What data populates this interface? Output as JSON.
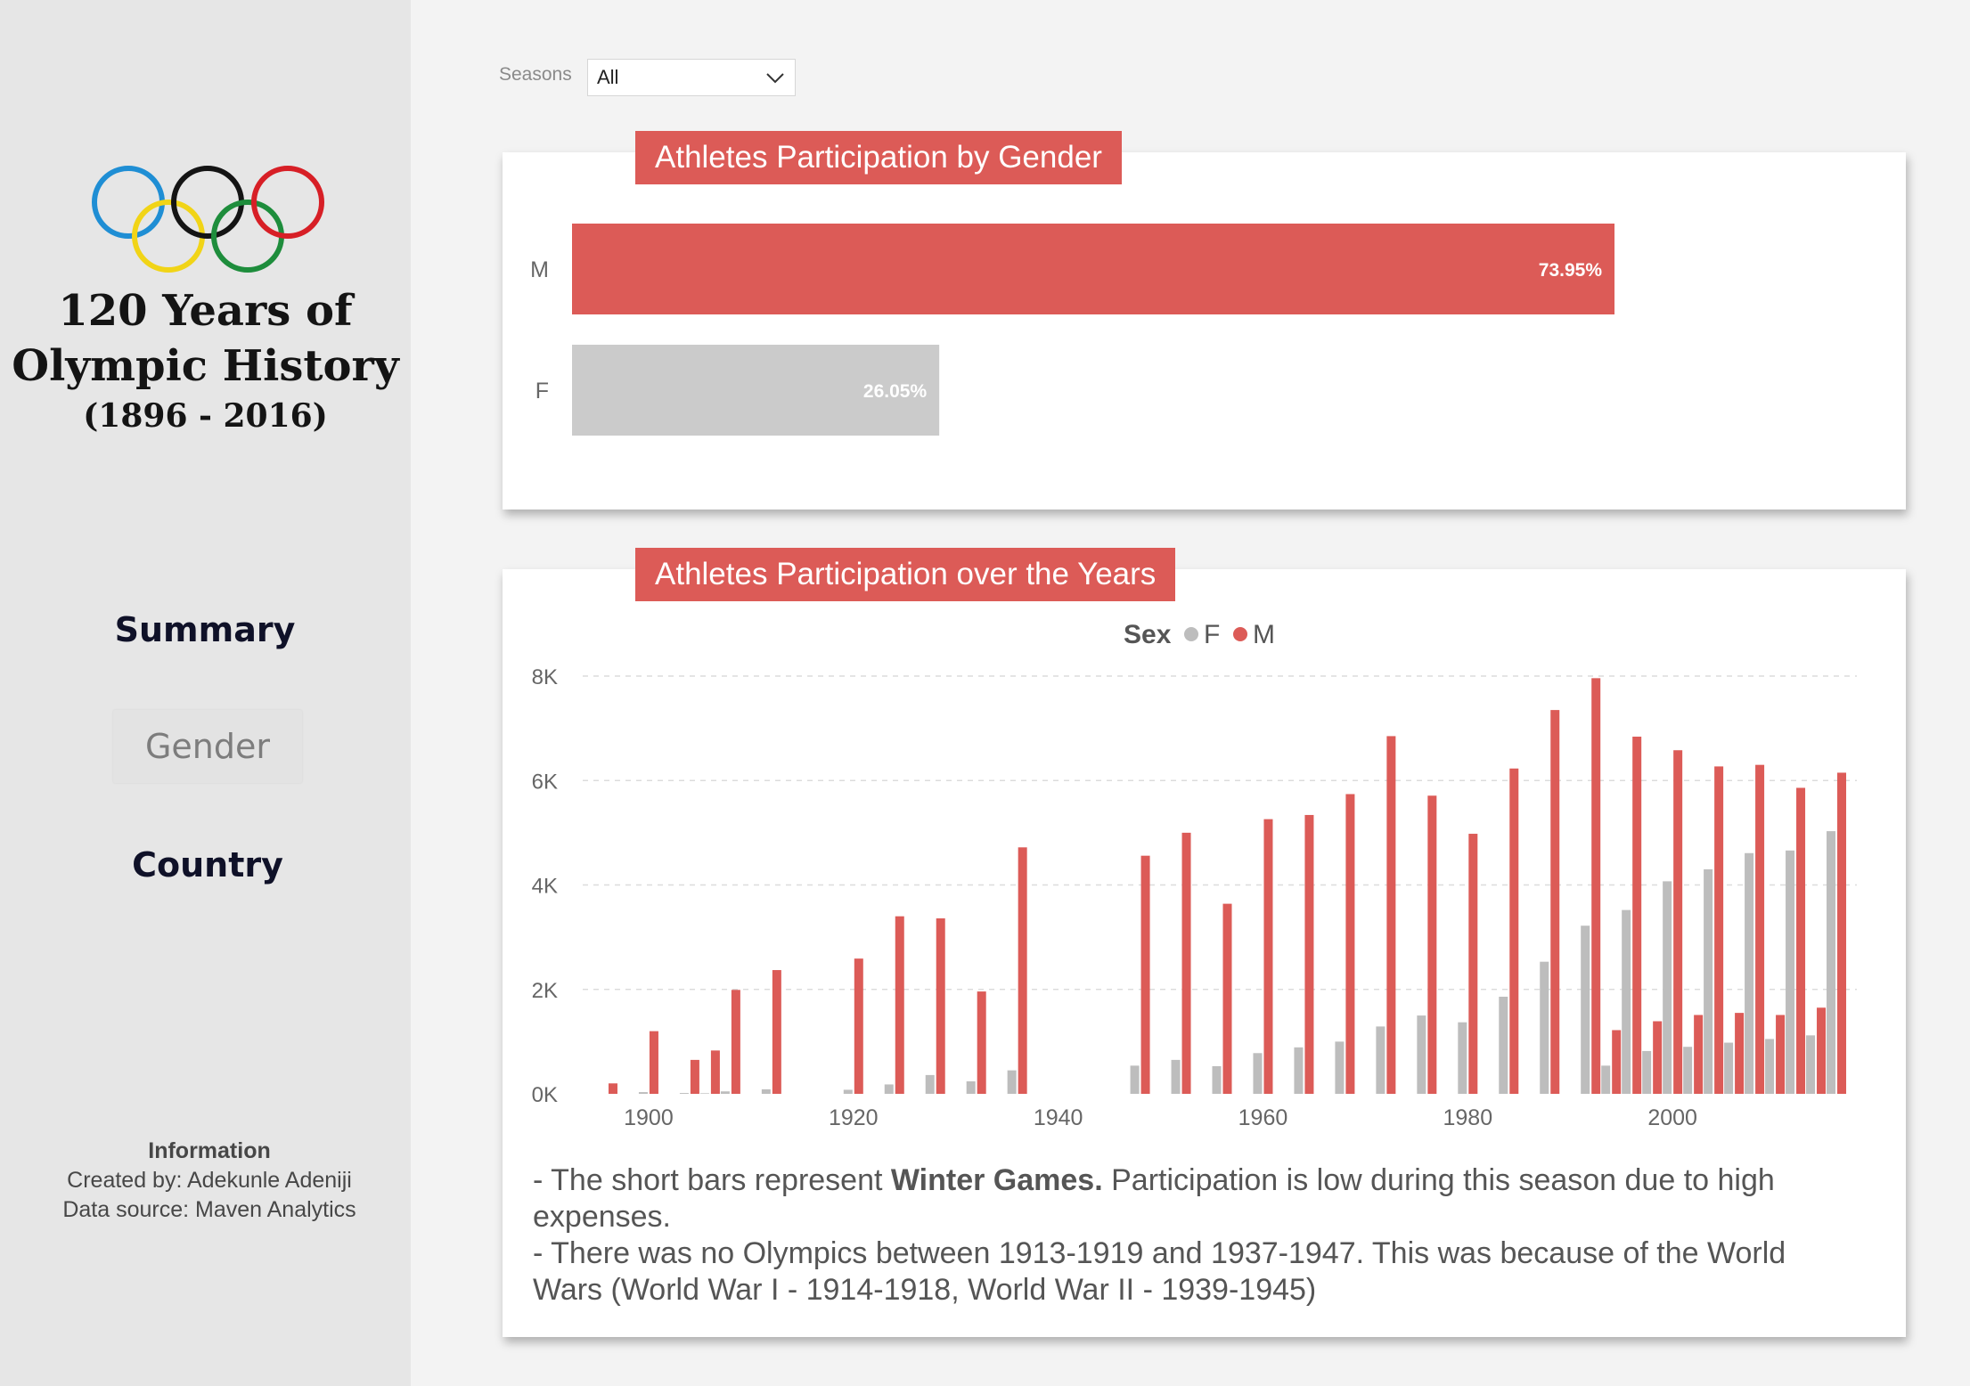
{
  "sidebar": {
    "title_line1": "120 Years of",
    "title_line2": "Olympic History",
    "title_line3": "(1896 - 2016)",
    "nav": {
      "summary": "Summary",
      "gender": "Gender",
      "country": "Country"
    },
    "info": {
      "heading": "Information",
      "created_by": "Created by: Adekunle Adeniji",
      "source": "Data source: Maven Analytics"
    },
    "ring_colors": [
      "#1f8ed4",
      "#f1d417",
      "#141414",
      "#1e8d3c",
      "#d71f26"
    ]
  },
  "filter": {
    "label": "Seasons",
    "value": "All"
  },
  "colors": {
    "accent": "#dc5b57",
    "female": "#bdbdbd",
    "male": "#dc5b57",
    "female_gender_bar": "#cbcbcb"
  },
  "gender_card": {
    "title": "Athletes Participation by Gender"
  },
  "years_card": {
    "title": "Athletes Participation over the Years"
  },
  "chart_data": [
    {
      "type": "bar",
      "orientation": "horizontal",
      "title": "Athletes Participation by Gender",
      "categories": [
        "M",
        "F"
      ],
      "values": [
        73.95,
        26.05
      ],
      "labels": [
        "73.95%",
        "26.05%"
      ],
      "unit": "%"
    },
    {
      "type": "bar",
      "title": "Athletes Participation over the Years",
      "legend_title": "Sex",
      "legend_position": "top-center",
      "x": [
        1896,
        1900,
        1904,
        1906,
        1908,
        1912,
        1920,
        1924,
        1928,
        1932,
        1936,
        1948,
        1952,
        1956,
        1960,
        1964,
        1968,
        1972,
        1976,
        1980,
        1984,
        1988,
        1992,
        1994,
        1996,
        1998,
        2000,
        2002,
        2004,
        2006,
        2008,
        2010,
        2012,
        2014,
        2016
      ],
      "xticks": [
        "1900",
        "1920",
        "1940",
        "1960",
        "1980",
        "2000"
      ],
      "xlim": [
        1894,
        2018
      ],
      "yticks": [
        "0K",
        "2K",
        "4K",
        "6K",
        "8K"
      ],
      "ylim": [
        0,
        8000
      ],
      "grid": true,
      "series": [
        {
          "name": "F",
          "values": [
            0,
            33,
            16,
            11,
            47,
            87,
            78,
            180,
            360,
            240,
            450,
            540,
            650,
            530,
            780,
            890,
            1000,
            1290,
            1500,
            1370,
            1860,
            2530,
            3220,
            540,
            3520,
            820,
            4070,
            900,
            4300,
            980,
            4610,
            1050,
            4660,
            1120,
            5030
          ]
        },
        {
          "name": "M",
          "values": [
            200,
            1200,
            650,
            830,
            1990,
            2370,
            2590,
            3400,
            3360,
            1960,
            4720,
            4560,
            5000,
            3640,
            5260,
            5340,
            5740,
            6850,
            5710,
            4980,
            6230,
            7350,
            7960,
            1220,
            6840,
            1390,
            6580,
            1510,
            6270,
            1550,
            6300,
            1510,
            5860,
            1650,
            6150
          ]
        }
      ]
    }
  ],
  "notes": {
    "line1_pre": "- The short bars represent ",
    "line1_bold": "Winter Games.",
    "line1_post": " Participation is low during this season due to high expenses.",
    "line2": "- There was no Olympics between 1913-1919 and 1937-1947. This was because of the World Wars (World War I - 1914-1918, World War II - 1939-1945)"
  }
}
